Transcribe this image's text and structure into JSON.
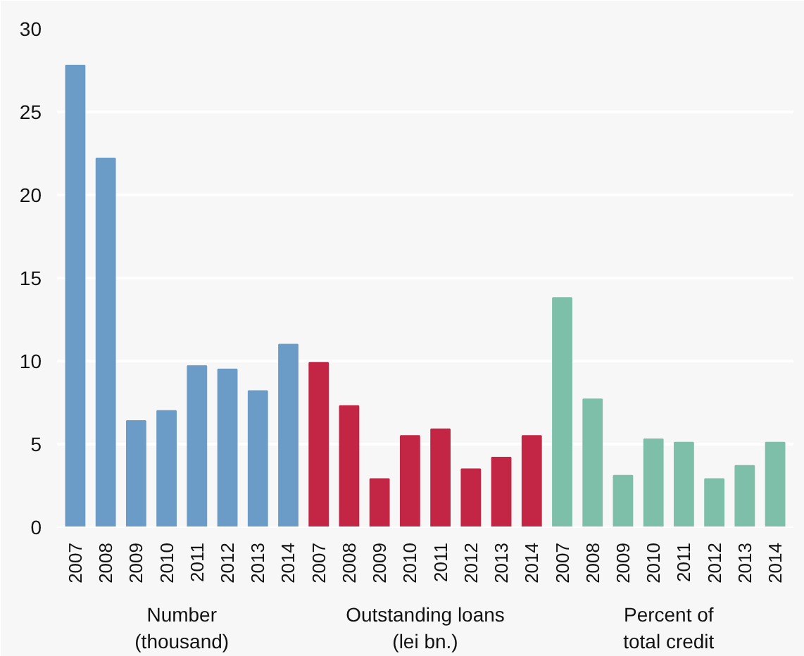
{
  "chart_data": {
    "type": "bar",
    "categories": [
      "2007",
      "2008",
      "2009",
      "2010",
      "2011",
      "2012",
      "2013",
      "2014",
      "2007",
      "2008",
      "2009",
      "2010",
      "2011",
      "2012",
      "2013",
      "2014",
      "2007",
      "2008",
      "2009",
      "2010",
      "2011",
      "2012",
      "2013",
      "2014"
    ],
    "values": [
      27.8,
      22.2,
      6.4,
      7.0,
      9.7,
      9.5,
      8.2,
      11.0,
      9.9,
      7.3,
      2.9,
      5.5,
      5.9,
      3.5,
      4.2,
      5.5,
      13.8,
      7.7,
      3.1,
      5.3,
      5.1,
      2.9,
      3.7,
      5.1
    ],
    "colors": [
      "#6b9bc7",
      "#6b9bc7",
      "#6b9bc7",
      "#6b9bc7",
      "#6b9bc7",
      "#6b9bc7",
      "#6b9bc7",
      "#6b9bc7",
      "#c32644",
      "#c32644",
      "#c32644",
      "#c32644",
      "#c32644",
      "#c32644",
      "#c32644",
      "#c32644",
      "#7dbfa8",
      "#7dbfa8",
      "#7dbfa8",
      "#7dbfa8",
      "#7dbfa8",
      "#7dbfa8",
      "#7dbfa8",
      "#7dbfa8"
    ],
    "ylim": [
      0,
      30
    ],
    "yticks": [
      0,
      5,
      10,
      15,
      20,
      25,
      30
    ],
    "grid": "y",
    "annotations": [
      "Number\n(thousand)",
      "Outstanding loans\n(lei bn.)",
      "Percent of\ntotal credit"
    ]
  }
}
